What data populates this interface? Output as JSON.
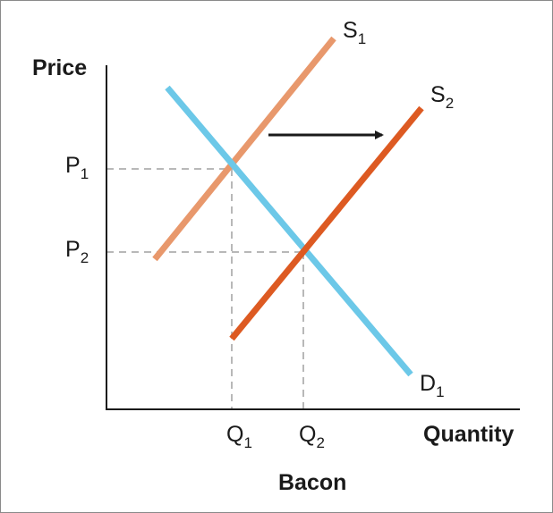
{
  "axes": {
    "y_label": "Price",
    "x_label": "Quantity",
    "caption": "Bacon"
  },
  "curves": {
    "supply_1": {
      "letter": "S",
      "sub": "1",
      "color": "#e8986c"
    },
    "supply_2": {
      "letter": "S",
      "sub": "2",
      "color": "#dd5a22"
    },
    "demand_1": {
      "letter": "D",
      "sub": "1",
      "color": "#6cc8e8"
    }
  },
  "prices": {
    "p1": {
      "letter": "P",
      "sub": "1"
    },
    "p2": {
      "letter": "P",
      "sub": "2"
    }
  },
  "quantities": {
    "q1": {
      "letter": "Q",
      "sub": "1"
    },
    "q2": {
      "letter": "Q",
      "sub": "2"
    }
  },
  "shift_arrow": {
    "direction": "right",
    "color": "#1a1a1a"
  },
  "guide_color": "#b8b8b8"
}
